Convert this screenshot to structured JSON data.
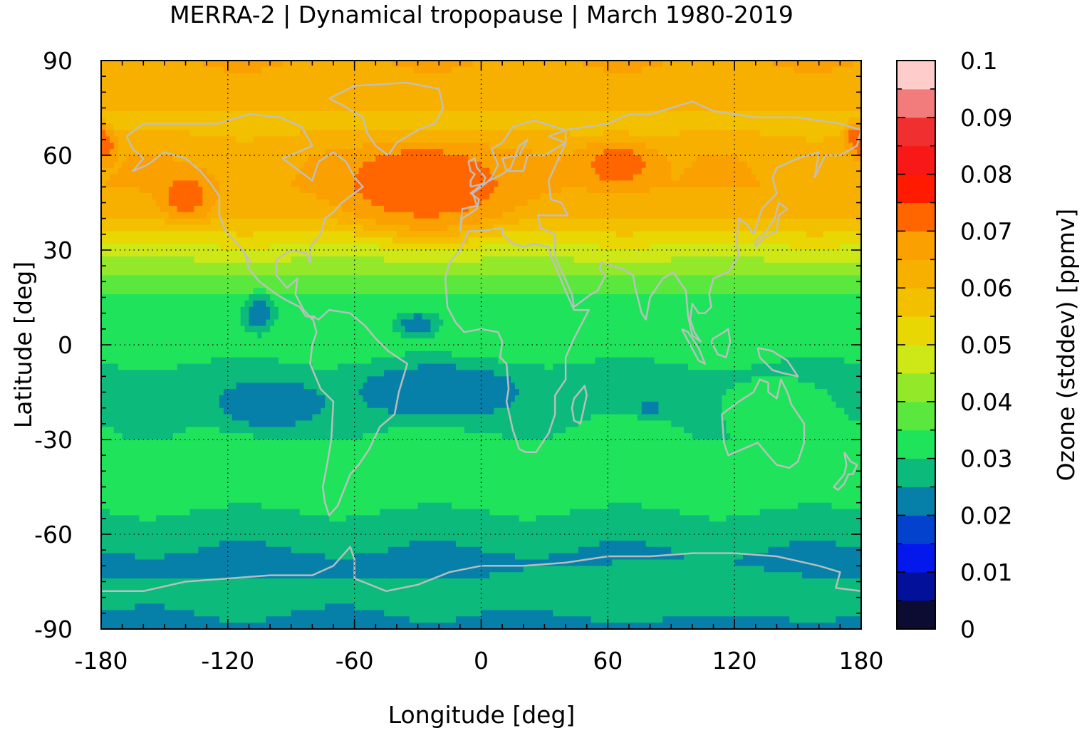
{
  "chart_data": {
    "type": "heatmap",
    "title": "MERRA-2 | Dynamical tropopause | March 1980-2019",
    "xlabel": "Longitude [deg]",
    "ylabel": "Latitude [deg]",
    "colorbar_label": "Ozone (stddev) [ppmv]",
    "xlim": [
      -180,
      180
    ],
    "ylim": [
      -90,
      90
    ],
    "xticks": [
      "-180",
      "-120",
      "-60",
      "0",
      "60",
      "120",
      "180"
    ],
    "yticks": [
      "90",
      "60",
      "30",
      "0",
      "-30",
      "-60",
      "-90"
    ],
    "colorbar_ticks": [
      "0.1",
      "0.09",
      "0.08",
      "0.07",
      "0.06",
      "0.05",
      "0.04",
      "0.03",
      "0.02",
      "0.01",
      "0"
    ],
    "colorbar_range": [
      0,
      0.1
    ],
    "grid": true,
    "coastlines_color": "#c0c0c0",
    "colorscale": [
      {
        "from": 0.0,
        "to": 0.005,
        "color": "#0c0c33"
      },
      {
        "from": 0.005,
        "to": 0.01,
        "color": "#03109a"
      },
      {
        "from": 0.01,
        "to": 0.015,
        "color": "#0418ee"
      },
      {
        "from": 0.015,
        "to": 0.02,
        "color": "#0242cd"
      },
      {
        "from": 0.02,
        "to": 0.025,
        "color": "#0680a8"
      },
      {
        "from": 0.025,
        "to": 0.03,
        "color": "#0cba7c"
      },
      {
        "from": 0.03,
        "to": 0.035,
        "color": "#1ee35b"
      },
      {
        "from": 0.035,
        "to": 0.04,
        "color": "#5ae83e"
      },
      {
        "from": 0.04,
        "to": 0.045,
        "color": "#94e82a"
      },
      {
        "from": 0.045,
        "to": 0.05,
        "color": "#cde816"
      },
      {
        "from": 0.05,
        "to": 0.055,
        "color": "#e8d703"
      },
      {
        "from": 0.055,
        "to": 0.06,
        "color": "#f3c000"
      },
      {
        "from": 0.06,
        "to": 0.065,
        "color": "#f8b000"
      },
      {
        "from": 0.065,
        "to": 0.07,
        "color": "#faa000"
      },
      {
        "from": 0.07,
        "to": 0.075,
        "color": "#ff6600"
      },
      {
        "from": 0.075,
        "to": 0.08,
        "color": "#ff1a00"
      },
      {
        "from": 0.08,
        "to": 0.085,
        "color": "#f81818"
      },
      {
        "from": 0.085,
        "to": 0.09,
        "color": "#f03030"
      },
      {
        "from": 0.09,
        "to": 0.095,
        "color": "#f27c7c"
      },
      {
        "from": 0.095,
        "to": 0.1,
        "color": "#ffcccc"
      }
    ],
    "zonal_profile": {
      "lat": [
        -90,
        -80,
        -70,
        -60,
        -50,
        -40,
        -30,
        -20,
        -10,
        0,
        10,
        20,
        30,
        40,
        50,
        60,
        70,
        80,
        90
      ],
      "value": [
        0.023,
        0.027,
        0.023,
        0.027,
        0.031,
        0.033,
        0.031,
        0.029,
        0.028,
        0.033,
        0.031,
        0.038,
        0.048,
        0.06,
        0.065,
        0.064,
        0.058,
        0.062,
        0.065
      ]
    },
    "anomalies": [
      {
        "lon": -28,
        "lat": 52,
        "dlon": 28,
        "dlat": 9,
        "value": 0.077
      },
      {
        "lon": -25,
        "lat": 50,
        "dlon": 45,
        "dlat": 15,
        "value": 0.071
      },
      {
        "lon": 65,
        "lat": 57,
        "dlon": 20,
        "dlat": 8,
        "value": 0.071
      },
      {
        "lon": -140,
        "lat": 47,
        "dlon": 14,
        "dlat": 8,
        "value": 0.071
      },
      {
        "lon": -178,
        "lat": 63,
        "dlon": 6,
        "dlat": 5,
        "value": 0.071
      },
      {
        "lon": 178,
        "lat": 66,
        "dlon": 6,
        "dlat": 5,
        "value": 0.071
      },
      {
        "lon": -100,
        "lat": -19,
        "dlon": 30,
        "dlat": 9,
        "value": 0.023
      },
      {
        "lon": -20,
        "lat": -15,
        "dlon": 45,
        "dlat": 10,
        "value": 0.023
      },
      {
        "lon": -105,
        "lat": 10,
        "dlon": 7,
        "dlat": 6,
        "value": 0.023
      },
      {
        "lon": -30,
        "lat": 6,
        "dlon": 10,
        "dlat": 4,
        "value": 0.023
      },
      {
        "lon": 80,
        "lat": -20,
        "dlon": 6,
        "dlat": 3,
        "value": 0.023
      },
      {
        "lon": 20,
        "lat": 2,
        "dlon": 40,
        "dlat": 6,
        "value": 0.033
      },
      {
        "lon": 140,
        "lat": -20,
        "dlon": 25,
        "dlat": 10,
        "value": 0.033
      },
      {
        "lon": 50,
        "lat": -40,
        "dlon": 50,
        "dlat": 7,
        "value": 0.033
      },
      {
        "lon": 80,
        "lat": -77,
        "dlon": 70,
        "dlat": 8,
        "value": 0.029
      }
    ]
  }
}
